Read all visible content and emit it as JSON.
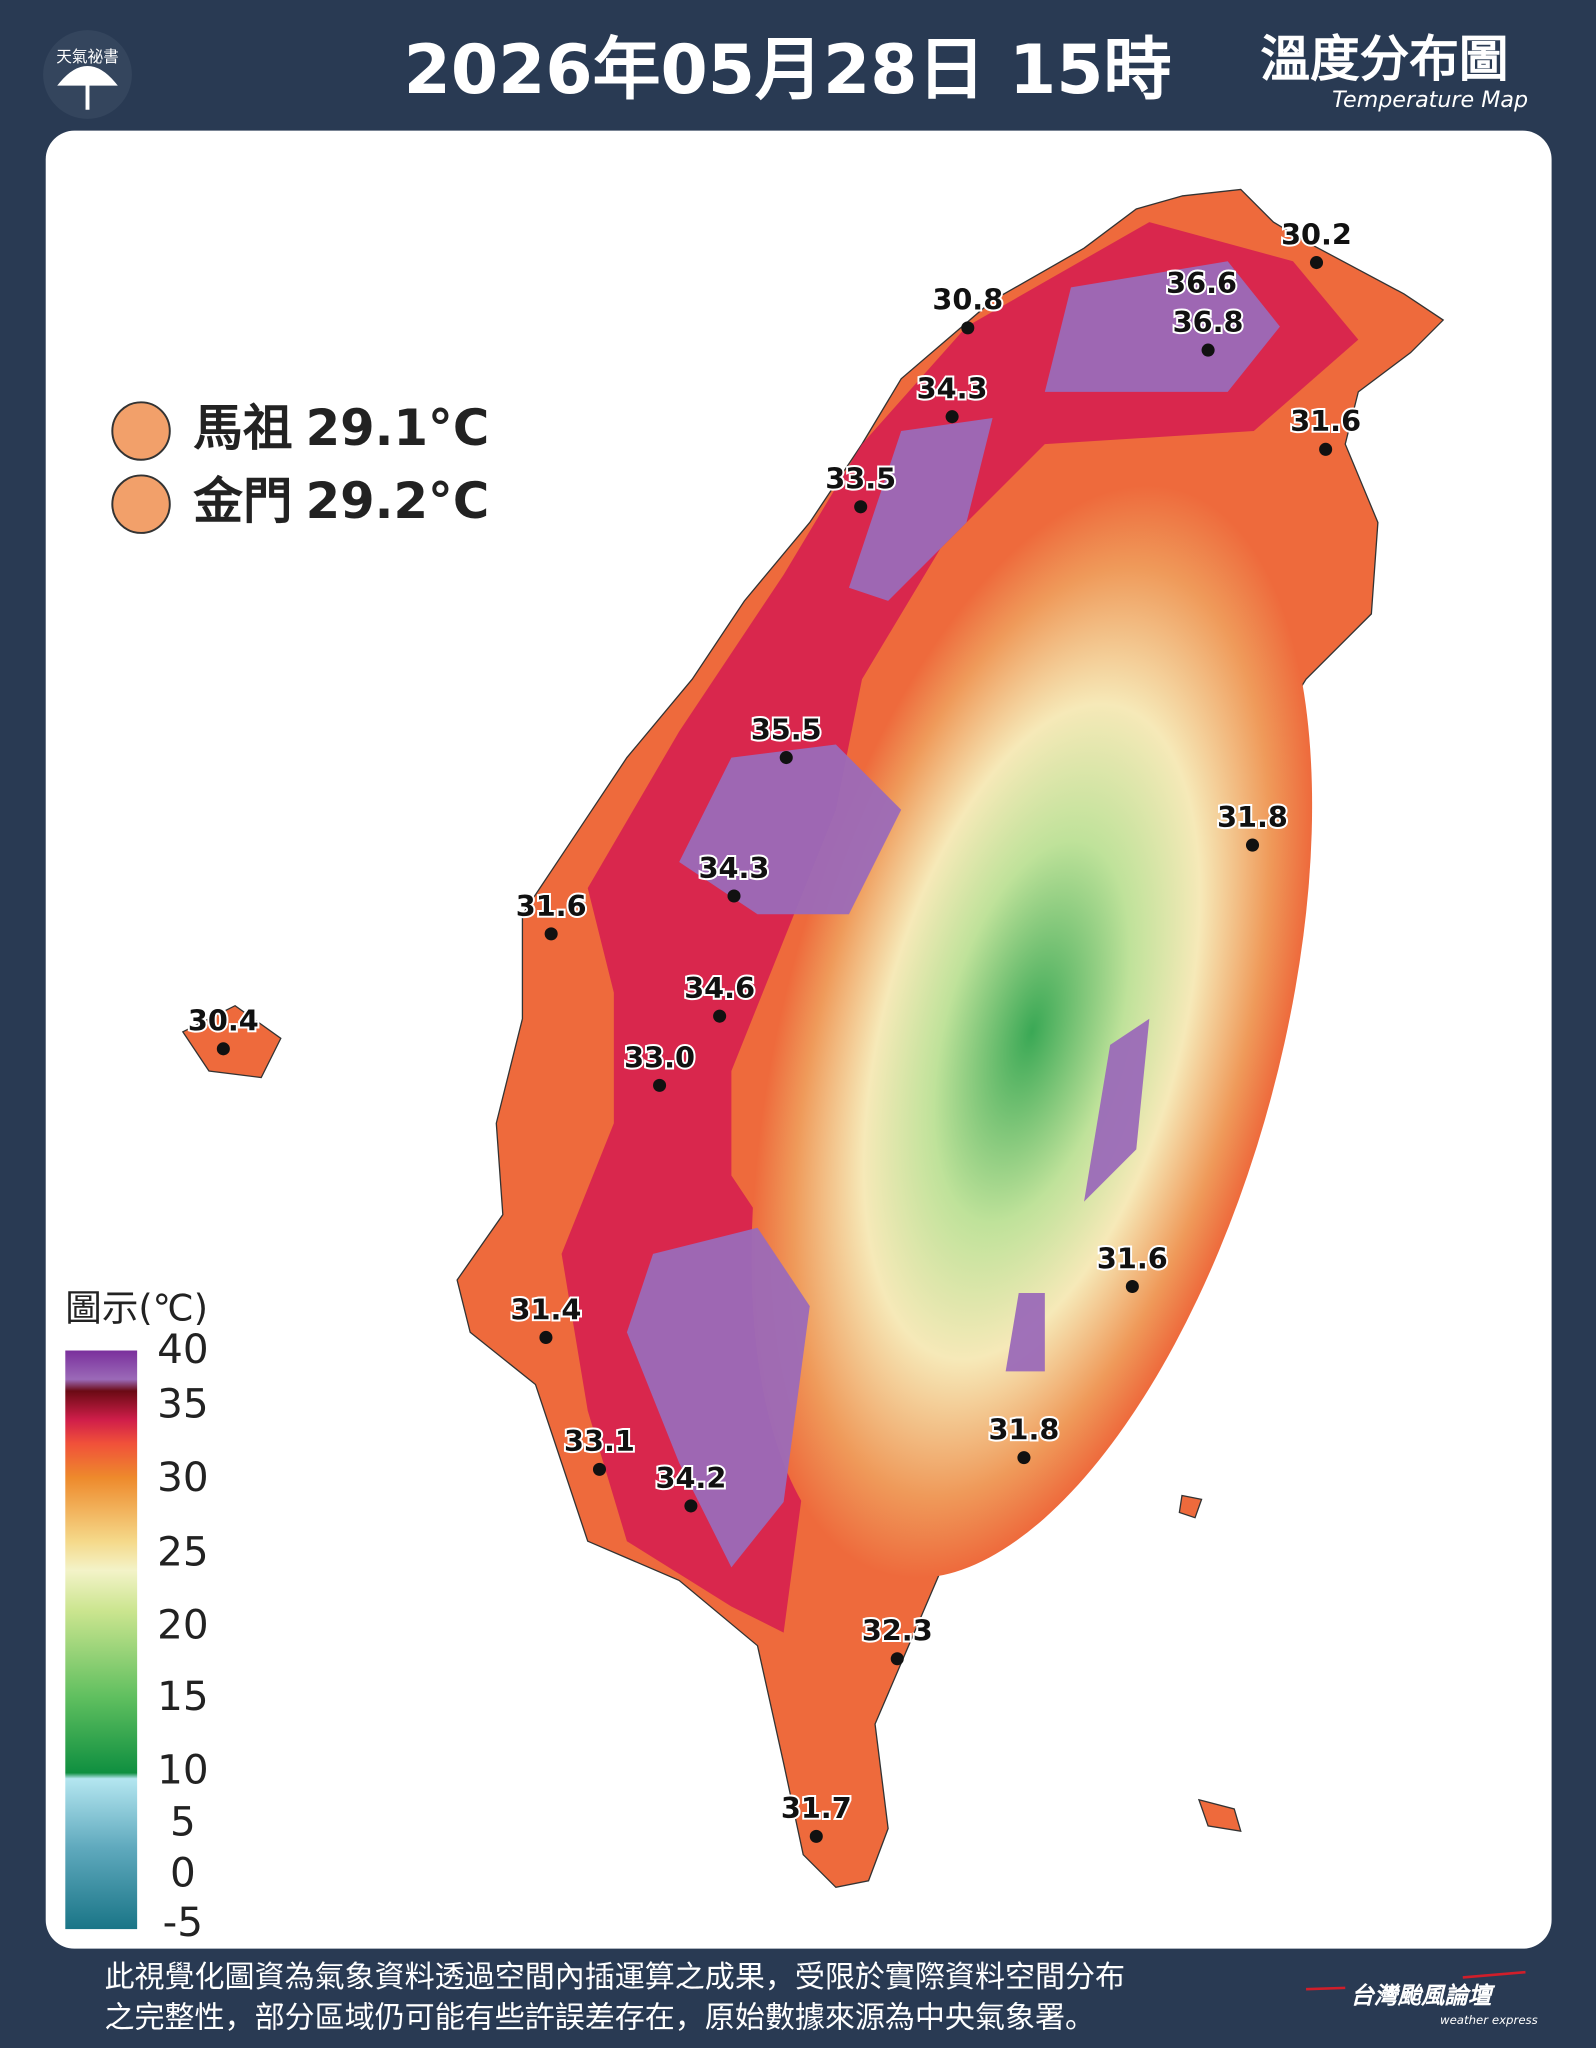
{
  "header": {
    "logo": "天氣祕書",
    "title": "2026年05月28日 15時",
    "map_title": "溫度分布圖",
    "map_subtitle": "Temperature Map"
  },
  "outlying": [
    {
      "name": "馬祖",
      "value": "29.1°C"
    },
    {
      "name": "金門",
      "value": "29.2°C"
    }
  ],
  "stations": [
    "30.2",
    "36.6",
    "36.8",
    "30.8",
    "34.3",
    "31.6",
    "33.5",
    "35.5",
    "31.8",
    "34.3",
    "31.6",
    "30.4",
    "34.6",
    "33.0",
    "31.6",
    "31.4",
    "31.8",
    "33.1",
    "34.2",
    "32.3",
    "31.7"
  ],
  "legend": {
    "title": "圖示(℃)",
    "ticks": [
      "40",
      "35",
      "30",
      "25",
      "20",
      "15",
      "10",
      "5",
      "0",
      "-5"
    ]
  },
  "footer": {
    "lines": [
      "此視覺化圖資為氣象資料透過空間內插運算之成果，受限於實際資料空間分布",
      "之完整性，部分區域仍可能有些許誤差存在，原始數據來源為中央氣象署。"
    ],
    "brand": "台灣颱風論壇",
    "brand_sub": "weather express"
  }
}
